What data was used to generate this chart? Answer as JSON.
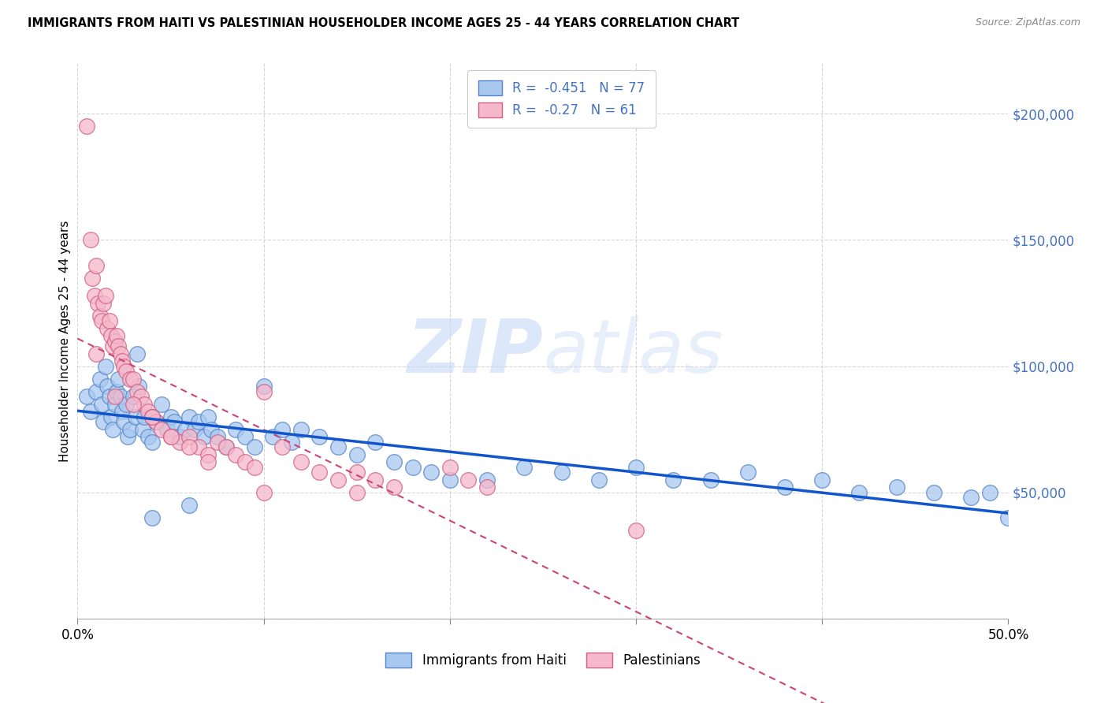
{
  "title": "IMMIGRANTS FROM HAITI VS PALESTINIAN HOUSEHOLDER INCOME AGES 25 - 44 YEARS CORRELATION CHART",
  "source": "Source: ZipAtlas.com",
  "ylabel": "Householder Income Ages 25 - 44 years",
  "x_min": 0.0,
  "x_max": 0.5,
  "y_min": 0,
  "y_max": 220000,
  "x_ticks": [
    0.0,
    0.1,
    0.2,
    0.3,
    0.4,
    0.5
  ],
  "x_tick_labels": [
    "0.0%",
    "",
    "",
    "",
    "",
    "50.0%"
  ],
  "y_ticks": [
    0,
    50000,
    100000,
    150000,
    200000
  ],
  "y_tick_labels": [
    "",
    "$50,000",
    "$100,000",
    "$150,000",
    "$200,000"
  ],
  "haiti_color": "#a8c8f0",
  "haiti_edge_color": "#5585c8",
  "haiti_line_color": "#1155cc",
  "palestine_color": "#f5b8cc",
  "palestine_edge_color": "#d06080",
  "palestine_line_color": "#cc4477",
  "haiti_R": -0.451,
  "haiti_N": 77,
  "palestine_R": -0.27,
  "palestine_N": 61,
  "watermark_zip": "ZIP",
  "watermark_atlas": "atlas",
  "haiti_scatter_x": [
    0.005,
    0.007,
    0.01,
    0.012,
    0.013,
    0.014,
    0.015,
    0.016,
    0.017,
    0.018,
    0.019,
    0.02,
    0.021,
    0.022,
    0.023,
    0.024,
    0.025,
    0.026,
    0.027,
    0.028,
    0.03,
    0.031,
    0.032,
    0.033,
    0.035,
    0.036,
    0.038,
    0.04,
    0.042,
    0.045,
    0.048,
    0.05,
    0.052,
    0.055,
    0.058,
    0.06,
    0.063,
    0.065,
    0.068,
    0.07,
    0.072,
    0.075,
    0.08,
    0.085,
    0.09,
    0.095,
    0.1,
    0.105,
    0.11,
    0.115,
    0.12,
    0.13,
    0.14,
    0.15,
    0.16,
    0.17,
    0.18,
    0.19,
    0.2,
    0.22,
    0.24,
    0.26,
    0.28,
    0.3,
    0.32,
    0.34,
    0.36,
    0.38,
    0.4,
    0.42,
    0.44,
    0.46,
    0.48,
    0.49,
    0.5,
    0.04,
    0.06
  ],
  "haiti_scatter_y": [
    88000,
    82000,
    90000,
    95000,
    85000,
    78000,
    100000,
    92000,
    88000,
    80000,
    75000,
    85000,
    90000,
    95000,
    88000,
    82000,
    78000,
    85000,
    72000,
    75000,
    88000,
    80000,
    105000,
    92000,
    75000,
    80000,
    72000,
    70000,
    78000,
    85000,
    75000,
    80000,
    78000,
    72000,
    75000,
    80000,
    75000,
    78000,
    72000,
    80000,
    75000,
    72000,
    68000,
    75000,
    72000,
    68000,
    92000,
    72000,
    75000,
    70000,
    75000,
    72000,
    68000,
    65000,
    70000,
    62000,
    60000,
    58000,
    55000,
    55000,
    60000,
    58000,
    55000,
    60000,
    55000,
    55000,
    58000,
    52000,
    55000,
    50000,
    52000,
    50000,
    48000,
    50000,
    40000,
    40000,
    45000
  ],
  "palestine_scatter_x": [
    0.005,
    0.007,
    0.008,
    0.009,
    0.01,
    0.011,
    0.012,
    0.013,
    0.014,
    0.015,
    0.016,
    0.017,
    0.018,
    0.019,
    0.02,
    0.021,
    0.022,
    0.023,
    0.024,
    0.025,
    0.026,
    0.028,
    0.03,
    0.032,
    0.034,
    0.036,
    0.038,
    0.04,
    0.042,
    0.045,
    0.05,
    0.055,
    0.06,
    0.065,
    0.07,
    0.075,
    0.08,
    0.085,
    0.09,
    0.095,
    0.1,
    0.11,
    0.12,
    0.13,
    0.14,
    0.15,
    0.16,
    0.17,
    0.2,
    0.21,
    0.22,
    0.01,
    0.02,
    0.03,
    0.04,
    0.05,
    0.06,
    0.07,
    0.1,
    0.15,
    0.3
  ],
  "palestine_scatter_y": [
    195000,
    150000,
    135000,
    128000,
    140000,
    125000,
    120000,
    118000,
    125000,
    128000,
    115000,
    118000,
    112000,
    108000,
    110000,
    112000,
    108000,
    105000,
    102000,
    100000,
    98000,
    95000,
    95000,
    90000,
    88000,
    85000,
    82000,
    80000,
    78000,
    75000,
    72000,
    70000,
    72000,
    68000,
    65000,
    70000,
    68000,
    65000,
    62000,
    60000,
    90000,
    68000,
    62000,
    58000,
    55000,
    58000,
    55000,
    52000,
    60000,
    55000,
    52000,
    105000,
    88000,
    85000,
    80000,
    72000,
    68000,
    62000,
    50000,
    50000,
    35000
  ]
}
